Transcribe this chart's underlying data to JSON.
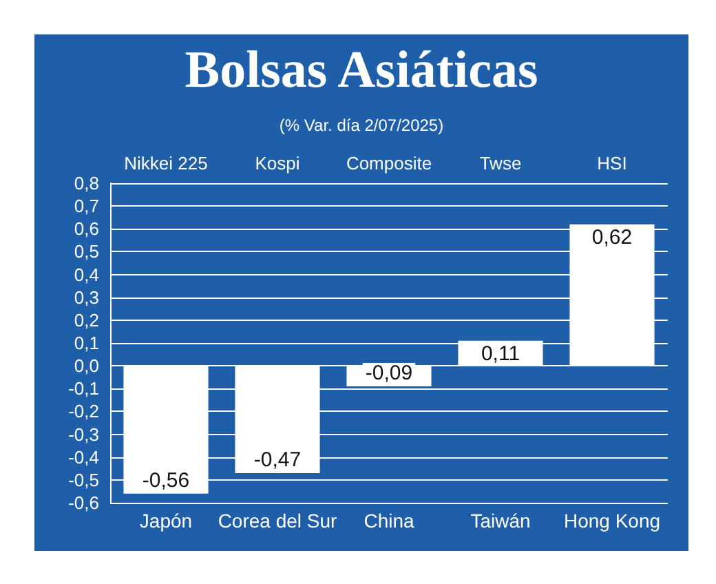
{
  "chart_data": {
    "type": "bar",
    "title": "Bolsas Asiáticas",
    "subtitle": "(% Var. día 2/07/2025)",
    "categories": [
      "Japón",
      "Corea del Sur",
      "China",
      "Taiwán",
      "Hong Kong"
    ],
    "values": [
      -0.56,
      -0.47,
      -0.09,
      0.11,
      0.62
    ],
    "value_labels": [
      "-0,56",
      "-0,47",
      "-0,09",
      "0,11",
      "0,62"
    ],
    "color": "#ffffff",
    "annotations": [
      "Nikkei 225",
      "Kospi",
      "Composite",
      "Twse",
      "HSI"
    ],
    "ylim": [
      -0.6,
      0.8
    ],
    "yticks": [
      {
        "value": -0.6,
        "label": "-0,6"
      },
      {
        "value": -0.5,
        "label": "-0,5"
      },
      {
        "value": -0.4,
        "label": "-0,4"
      },
      {
        "value": -0.3,
        "label": "-0,3"
      },
      {
        "value": -0.2,
        "label": "-0,2"
      },
      {
        "value": -0.1,
        "label": "-0,1"
      },
      {
        "value": 0,
        "label": "0,0"
      },
      {
        "value": 0.1,
        "label": "0,1"
      },
      {
        "value": 0.2,
        "label": "0,2"
      },
      {
        "value": 0.3,
        "label": "0,3"
      },
      {
        "value": 0.4,
        "label": "0,4"
      },
      {
        "value": 0.5,
        "label": "0,5"
      },
      {
        "value": 0.6,
        "label": "0,6"
      },
      {
        "value": 0.7,
        "label": "0,7"
      },
      {
        "value": 0.8,
        "label": "0,8"
      }
    ],
    "grid": "y"
  }
}
